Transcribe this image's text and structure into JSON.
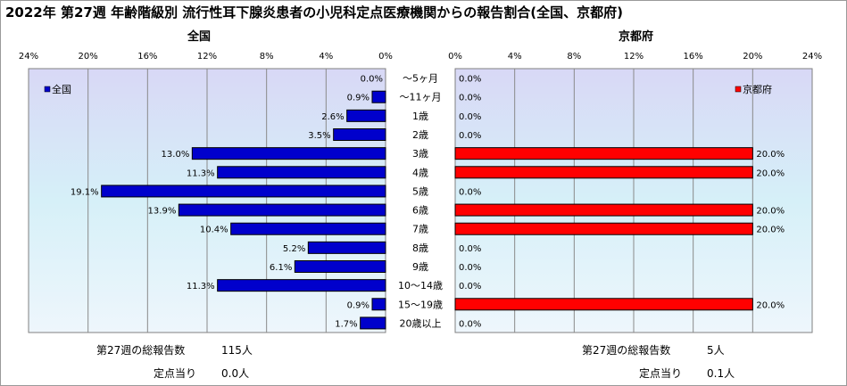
{
  "title": "2022年 第27週 年齢階級別 流行性耳下腺炎患者の小児科定点医療機関からの報告割合(全国、京都府)",
  "chart_data": {
    "type": "bar",
    "orientation": "horizontal",
    "categories": [
      "～5ヶ月",
      "～11ヶ月",
      "1歳",
      "2歳",
      "3歳",
      "4歳",
      "5歳",
      "6歳",
      "7歳",
      "8歳",
      "9歳",
      "10～14歳",
      "15～19歳",
      "20歳以上"
    ],
    "panels": [
      {
        "title": "全国",
        "series_name": "全国",
        "color": "#0000cc",
        "direction": "left",
        "values": [
          0.0,
          0.9,
          2.6,
          3.5,
          13.0,
          11.3,
          19.1,
          13.9,
          10.4,
          5.2,
          6.1,
          11.3,
          0.9,
          1.7
        ],
        "xlim": [
          0,
          24
        ],
        "ticks": [
          "24%",
          "20%",
          "16%",
          "12%",
          "8%",
          "4%",
          "0%"
        ],
        "legend_position": "top-left",
        "footer": {
          "total_label": "第27週の総報告数",
          "total_value": "115人",
          "per_label": "定点当り",
          "per_value": "0.0人"
        }
      },
      {
        "title": "京都府",
        "series_name": "京都府",
        "color": "#ff0000",
        "direction": "right",
        "values": [
          0.0,
          0.0,
          0.0,
          0.0,
          20.0,
          20.0,
          0.0,
          20.0,
          20.0,
          0.0,
          0.0,
          0.0,
          20.0,
          0.0
        ],
        "xlim": [
          0,
          24
        ],
        "ticks": [
          "0%",
          "4%",
          "8%",
          "12%",
          "16%",
          "20%",
          "24%"
        ],
        "legend_position": "top-right",
        "footer": {
          "total_label": "第27週の総報告数",
          "total_value": "5人",
          "per_label": "定点当り",
          "per_value": "0.1人"
        }
      }
    ],
    "grid": true,
    "value_format": "%.1f%"
  }
}
